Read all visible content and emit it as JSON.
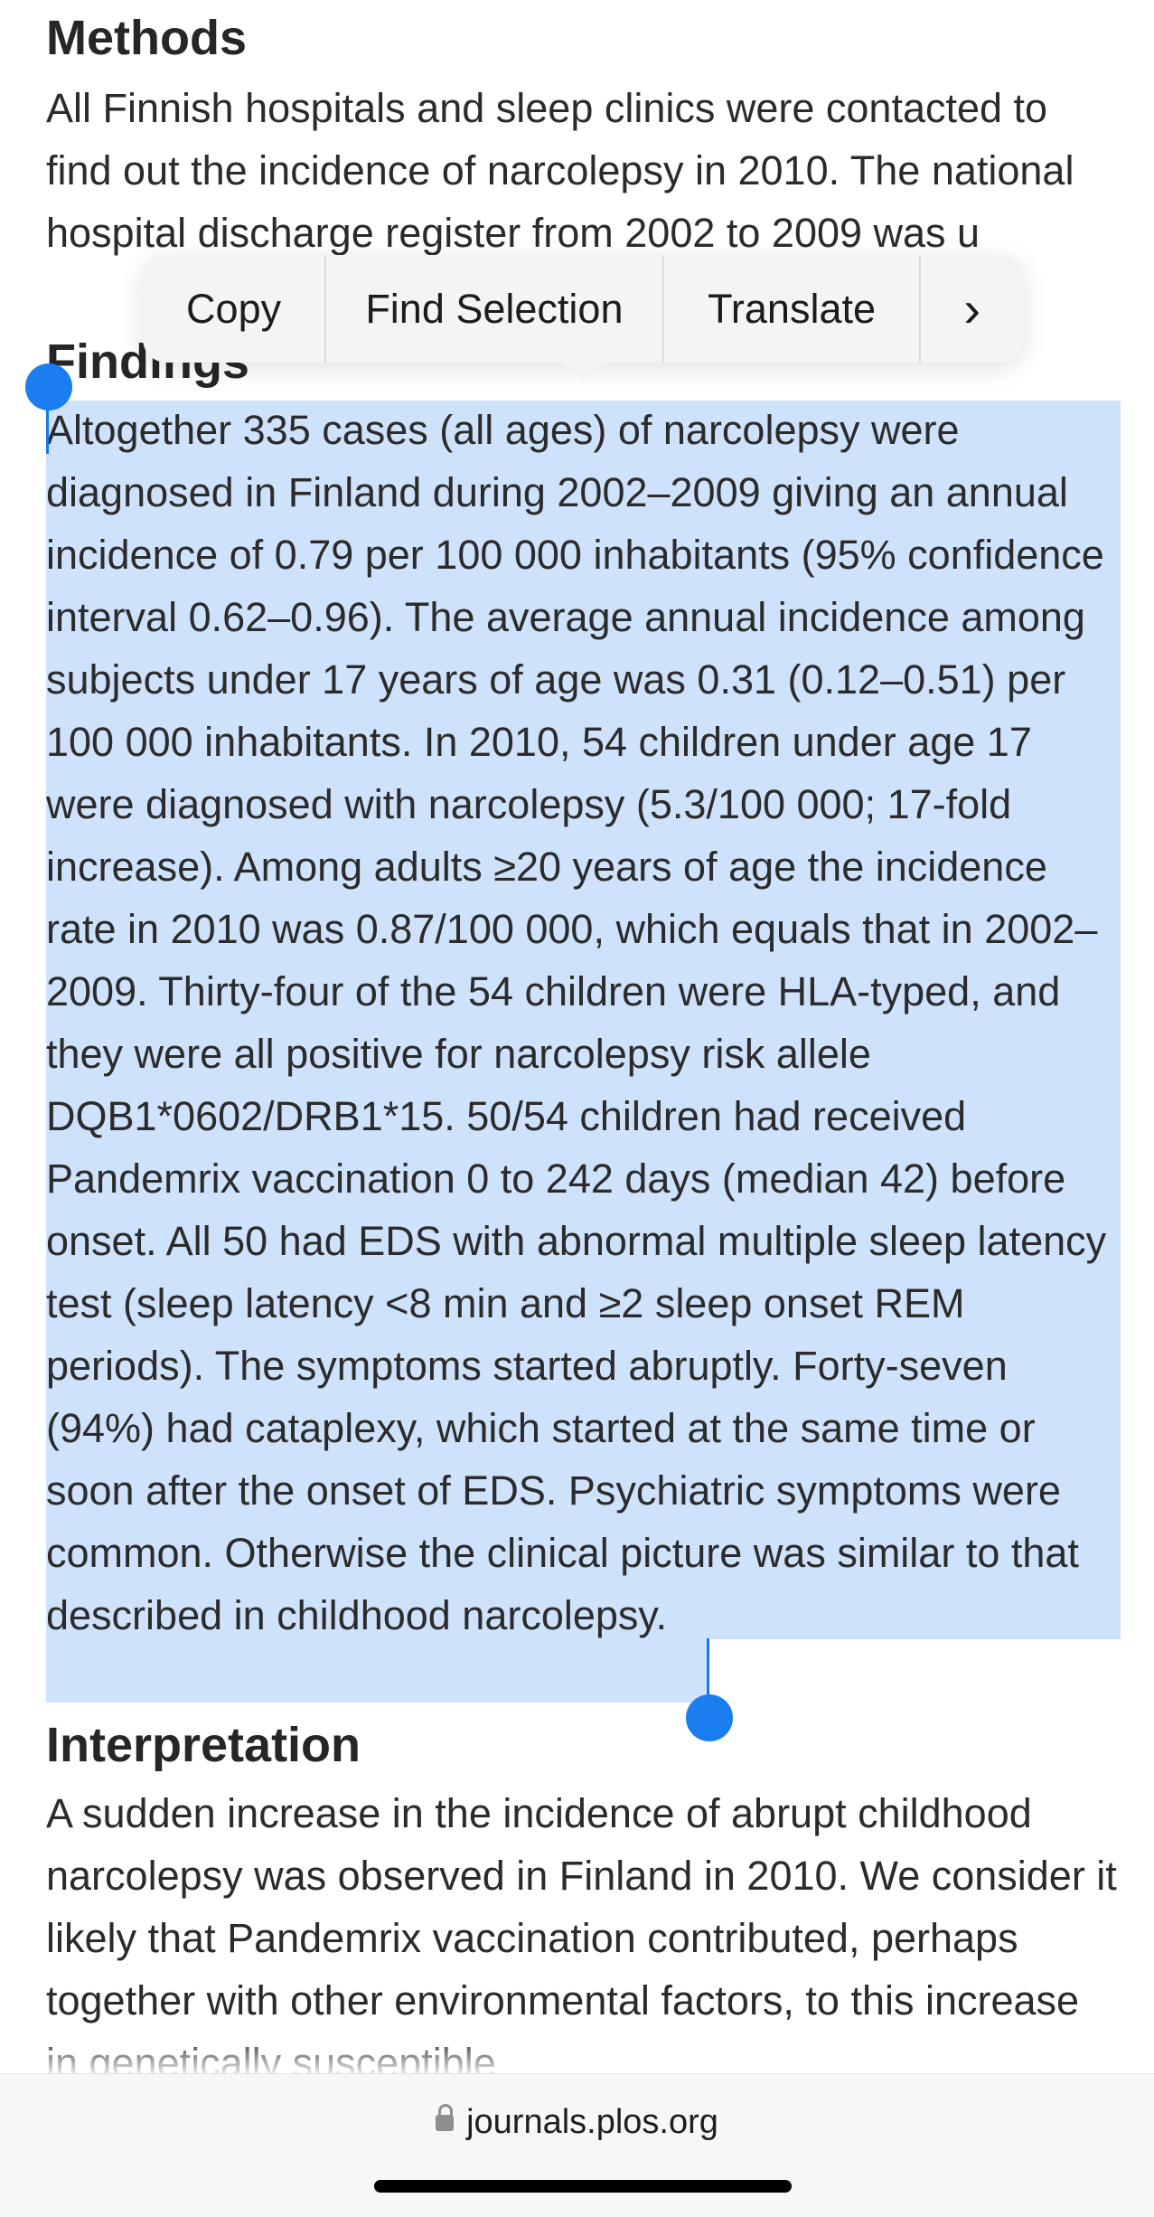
{
  "methods": {
    "heading": "Methods",
    "text": "All Finnish hospitals and sleep clinics were contacted to find out the incidence of narcolepsy in 2010. The national hospital discharge register from 2002 to 2009 was u"
  },
  "findings": {
    "heading": "Findings",
    "text": "Altogether 335 cases (all ages) of narcolepsy were diagnosed in Finland during 2002–2009 giving an annual incidence of 0.79 per 100 000 inhabitants (95% confidence interval 0.62–0.96). The average annual incidence among subjects under 17 years of age was 0.31 (0.12–0.51) per 100 000 inhabitants. In 2010, 54 children under age 17 were diagnosed with narcolepsy (5.3/100 000; 17-fold increase). Among adults ≥20 years of age the incidence rate in 2010 was 0.87/100 000, which equals that in 2002–2009. Thirty-four of the 54 children were HLA-typed, and they were all positive for narcolepsy risk allele DQB1*0602/DRB1*15. 50/54 children had received Pandemrix vaccination 0 to 242 days (median 42) before onset. All 50 had EDS with abnormal multiple sleep latency test (sleep latency <8 min and ≥2 sleep onset REM periods). The symptoms started abruptly. Forty-seven (94%) had cataplexy, which started at the same time or soon after the onset of EDS. Psychiatric symptoms were common. Otherwise the clinical picture was similar to that described in childhood narcolepsy."
  },
  "interpretation": {
    "heading": "Interpretation",
    "text": "A sudden increase in the incidence of abrupt childhood narcolepsy was observed in Finland in 2010. We consider it likely that Pandemrix vaccination contributed, perhaps together with other environmental factors, to this increase in genetically susceptible"
  },
  "context_menu": {
    "copy": "Copy",
    "find_selection": "Find Selection",
    "translate": "Translate",
    "more": "›"
  },
  "address_bar": {
    "url": "journals.plos.org",
    "icon": "lock-icon"
  },
  "colors": {
    "selection": "#cfe2fc",
    "handle": "#1a7df0"
  }
}
